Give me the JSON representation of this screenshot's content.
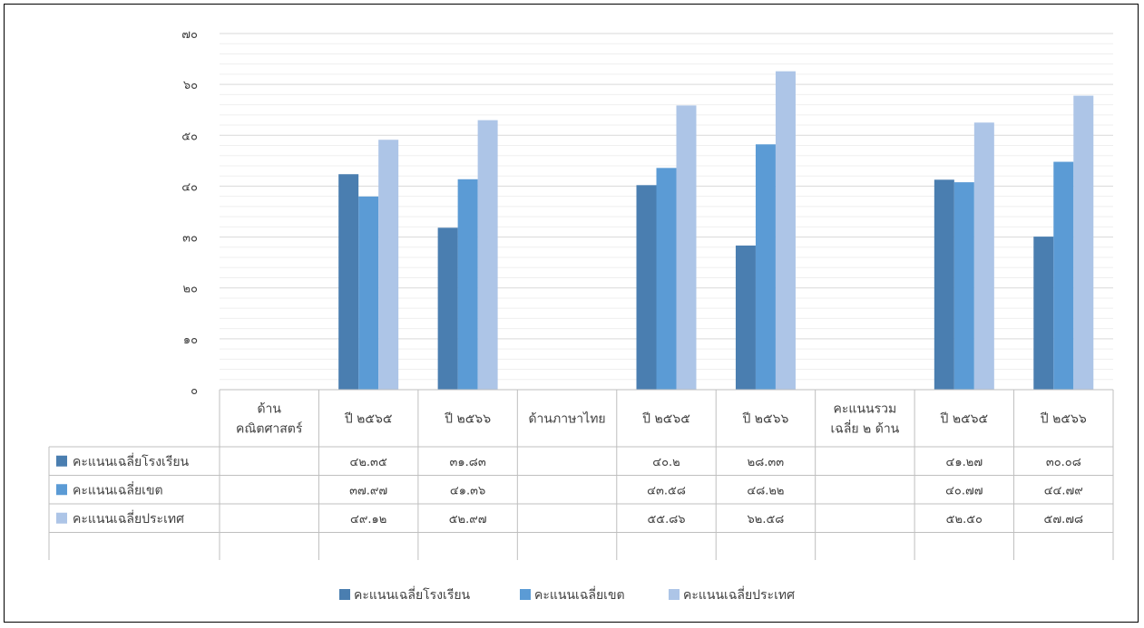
{
  "chart_data": {
    "type": "bar",
    "title": "",
    "xlabel": "",
    "ylabel": "",
    "ylim": [
      0,
      70
    ],
    "yticks": [
      {
        "v": 0,
        "label": "๐"
      },
      {
        "v": 10,
        "label": "๑๐"
      },
      {
        "v": 20,
        "label": "๒๐"
      },
      {
        "v": 30,
        "label": "๓๐"
      },
      {
        "v": 40,
        "label": "๔๐"
      },
      {
        "v": 50,
        "label": "๕๐"
      },
      {
        "v": 60,
        "label": "๖๐"
      },
      {
        "v": 70,
        "label": "๗๐"
      }
    ],
    "grid": true,
    "legend_position": "bottom",
    "categories": [
      [
        "ด้าน",
        "คณิตศาสตร์"
      ],
      [
        "ปี ๒๕๖๕"
      ],
      [
        "ปี ๒๕๖๖"
      ],
      [
        "ด้านภาษาไทย"
      ],
      [
        "ปี ๒๕๖๕"
      ],
      [
        "ปี ๒๕๖๖"
      ],
      [
        "คะแนนรวม",
        "เฉลี่ย ๒ ด้าน"
      ],
      [
        "ปี ๒๕๖๕"
      ],
      [
        "ปี ๒๕๖๖"
      ]
    ],
    "series": [
      {
        "name": "คะแนนเฉลี่ยโรงเรียน",
        "color": "#4a7eb0",
        "values": [
          null,
          42.35,
          31.83,
          null,
          40.2,
          28.33,
          null,
          41.27,
          30.08
        ],
        "labels": [
          "",
          "๔๒.๓๕",
          "๓๑.๘๓",
          "",
          "๔๐.๒",
          "๒๘.๓๓",
          "",
          "๔๑.๒๗",
          "๓๐.๐๘"
        ]
      },
      {
        "name": "คะแนนเฉลี่ยเขต",
        "color": "#5b9bd5",
        "values": [
          null,
          37.97,
          41.36,
          null,
          43.58,
          48.22,
          null,
          40.77,
          44.79
        ],
        "labels": [
          "",
          "๓๗.๙๗",
          "๔๑.๓๖",
          "",
          "๔๓.๕๘",
          "๔๘.๒๒",
          "",
          "๔๐.๗๗",
          "๔๔.๗๙"
        ]
      },
      {
        "name": "คะแนนเฉลี่ยประเทศ",
        "color": "#adc5e7",
        "values": [
          null,
          49.12,
          52.97,
          null,
          55.86,
          62.58,
          null,
          52.5,
          57.78
        ],
        "labels": [
          "",
          "๔๙.๑๒",
          "๕๒.๙๗",
          "",
          "๕๕.๘๖",
          "๖๒.๕๘",
          "",
          "๕๒.๕๐",
          "๕๗.๗๘"
        ]
      }
    ]
  }
}
